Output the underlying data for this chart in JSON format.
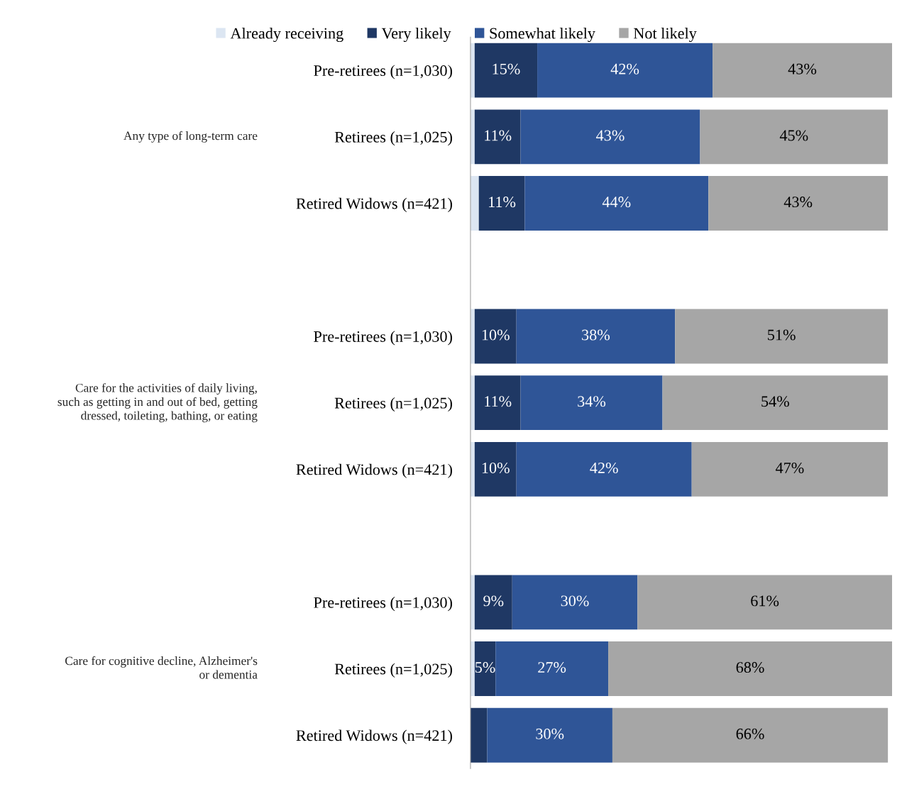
{
  "chart_data": {
    "type": "bar",
    "orientation": "horizontal",
    "stacked": true,
    "categories": [
      "Pre-retirees (n=1,030)",
      "Retirees (n=1,025)",
      "Retired Widows (n=421)",
      null,
      "Pre-retirees (n=1,030)",
      "Retirees (n=1,025)",
      "Retired Widows (n=421)",
      null,
      "Pre-retirees (n=1,030)",
      "Retirees (n=1,025)",
      "Retired Widows (n=421)"
    ],
    "series": [
      {
        "name": "Already receiving",
        "color": "#dce6f2",
        "values": [
          1,
          1,
          2,
          null,
          1,
          1,
          1,
          null,
          1,
          1,
          0
        ],
        "value_labels": [
          null,
          null,
          null,
          null,
          null,
          null,
          null,
          null,
          null,
          null,
          null
        ]
      },
      {
        "name": "Very likely",
        "color": "#1f3864",
        "values": [
          15,
          11,
          11,
          null,
          10,
          11,
          10,
          null,
          9,
          5,
          4
        ],
        "value_labels": [
          "15%",
          "11%",
          "11%",
          null,
          "10%",
          "11%",
          "10%",
          null,
          "9%",
          "5%",
          null
        ]
      },
      {
        "name": "Somewhat likely",
        "color": "#2f5597",
        "values": [
          42,
          43,
          44,
          null,
          38,
          34,
          42,
          null,
          30,
          27,
          30
        ],
        "value_labels": [
          "42%",
          "43%",
          "44%",
          null,
          "38%",
          "34%",
          "42%",
          null,
          "30%",
          "27%",
          "30%"
        ]
      },
      {
        "name": "Not likely",
        "color": "#a6a6a6",
        "values": [
          43,
          45,
          43,
          null,
          51,
          54,
          47,
          null,
          61,
          68,
          66
        ],
        "value_labels": [
          "43%",
          "45%",
          "43%",
          null,
          "51%",
          "54%",
          "47%",
          null,
          "61%",
          "68%",
          "66%"
        ]
      }
    ],
    "xlim": [
      0,
      101
    ],
    "tick_labels": "y",
    "legend": "top",
    "grid": false,
    "annotations": [
      "Any type of long-term care",
      "Care for the activities of daily living,\nsuch as getting in and out of bed, getting\ndressed, toileting, bathing, or eating",
      "Care for cognitive decline, Alzheimer's\nor dementia"
    ]
  }
}
